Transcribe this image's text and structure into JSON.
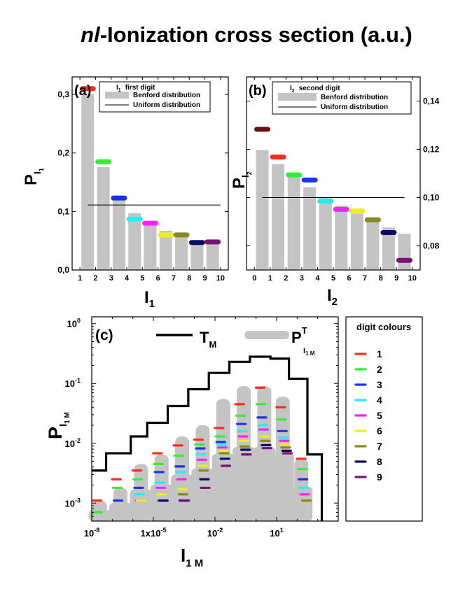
{
  "title_italic": "nl",
  "title_rest": "-Ionization cross section (a.u.)",
  "colors": {
    "benford": "#c4c4c4",
    "uniform": "#000000",
    "digits": [
      "#ff2a1a",
      "#33ee33",
      "#1a33ee",
      "#22eeee",
      "#ff22ff",
      "#eeee22",
      "#888822",
      "#0b0b66",
      "#771177"
    ],
    "d0": "#661111"
  },
  "chart_data": [
    {
      "type": "bar",
      "panel_label": "(a)",
      "categories": [
        "1",
        "2",
        "3",
        "4",
        "5",
        "6",
        "7",
        "8",
        "9"
      ],
      "benford": [
        0.301,
        0.176,
        0.125,
        0.097,
        0.079,
        0.067,
        0.058,
        0.051,
        0.046
      ],
      "observed": [
        0.31,
        0.185,
        0.123,
        0.087,
        0.08,
        0.06,
        0.06,
        0.047,
        0.048
      ],
      "uniform": 0.111,
      "xlim": [
        1,
        10
      ],
      "ylim": [
        0.0,
        0.33
      ],
      "x_ticks": [
        "1",
        "2",
        "3",
        "4",
        "5",
        "6",
        "7",
        "8",
        "9",
        "10"
      ],
      "y_ticks": [
        "0,0",
        "0,1",
        "0,2",
        "0,3"
      ],
      "y_tick_values": [
        0.0,
        0.1,
        0.2,
        0.3
      ],
      "legend": {
        "digit_symbol": "I",
        "digit_sub": "1",
        "digit_label": "first digit",
        "benford": "Benford distribution",
        "uniform": "Uniform distribution"
      },
      "xlabel_main": "I",
      "xlabel_sub": "1",
      "ylabel_main": "P",
      "ylabel_sub_main": "I",
      "ylabel_sub_sub": "1"
    },
    {
      "type": "bar",
      "panel_label": "(b)",
      "categories": [
        "0",
        "1",
        "2",
        "3",
        "4",
        "5",
        "6",
        "7",
        "8",
        "9"
      ],
      "benford": [
        0.1197,
        0.1139,
        0.1088,
        0.1043,
        0.1003,
        0.0967,
        0.0934,
        0.0904,
        0.0876,
        0.085
      ],
      "observed": [
        0.1283,
        0.1168,
        0.1094,
        0.1073,
        0.0985,
        0.0951,
        0.0945,
        0.0908,
        0.0855,
        0.074
      ],
      "uniform": 0.1,
      "xlim": [
        0,
        10
      ],
      "ylim": [
        0.07,
        0.15
      ],
      "x_ticks": [
        "0",
        "1",
        "2",
        "3",
        "4",
        "5",
        "6",
        "7",
        "8",
        "9",
        "10"
      ],
      "y_ticks": [
        "0,08",
        "0,10",
        "0,12",
        "0,14"
      ],
      "y_tick_values": [
        0.08,
        0.1,
        0.12,
        0.14
      ],
      "legend": {
        "digit_symbol": "I",
        "digit_sub": "2",
        "digit_label": "second digit",
        "benford": "Benford distribution",
        "uniform": "Uniform distribution"
      },
      "xlabel_main": "I",
      "xlabel_sub": "2",
      "ylabel_main": "P",
      "ylabel_sub_main": "I",
      "ylabel_sub_sub": "2"
    },
    {
      "type": "line",
      "panel_label": "(c)",
      "xscale": "log",
      "yscale": "log",
      "xlim": [
        1e-08,
        10000.0
      ],
      "ylim": [
        0.0005,
        1.3
      ],
      "x_ticks": [
        {
          "value": 1e-08,
          "base": "10",
          "exp": "-8"
        },
        {
          "value": 1e-05,
          "base": "1x10",
          "exp": "-5"
        },
        {
          "value": 0.01,
          "base": "10",
          "exp": "-2"
        },
        {
          "value": 10,
          "base": "10",
          "exp": "1"
        }
      ],
      "y_ticks": [
        {
          "value": 0.001,
          "base": "10",
          "exp": "-3"
        },
        {
          "value": 0.01,
          "base": "10",
          "exp": "-2"
        },
        {
          "value": 0.1,
          "base": "10",
          "exp": "-1"
        },
        {
          "value": 1,
          "base": "10",
          "exp": "0"
        }
      ],
      "T_M": {
        "x_edges_log": [
          -8,
          -7.3,
          -6.1,
          -5.3,
          -4.3,
          -3.3,
          -2.3,
          -1.3,
          -0.3,
          0.7,
          1.6,
          2.5,
          3.2
        ],
        "levels": [
          0.0035,
          0.0068,
          0.013,
          0.022,
          0.042,
          0.08,
          0.15,
          0.23,
          0.28,
          0.26,
          0.12,
          0.0065
        ],
        "drop_to": 0.0005
      },
      "P_T": {
        "x_log": [
          -7.6,
          -6.6,
          -5.6,
          -4.6,
          -3.6,
          -2.6,
          -1.6,
          -0.6,
          0.4,
          1.3,
          2.2
        ],
        "peaks": [
          0.0011,
          0.0018,
          0.0045,
          0.0065,
          0.013,
          0.02,
          0.055,
          0.09,
          0.09,
          0.06,
          0.0055
        ]
      },
      "digit_marks": [
        {
          "log_x": -7.75,
          "values": [
            0.0011,
            0.0007
          ]
        },
        {
          "log_x": -6.8,
          "values": [
            0.0025,
            0.0018,
            0.0011
          ]
        },
        {
          "log_x": -5.8,
          "values": [
            0.0035,
            0.0025,
            0.0018,
            0.0014,
            0.0011,
            0.0011
          ]
        },
        {
          "log_x": -4.8,
          "values": [
            0.0068,
            0.0045,
            0.0033,
            0.0022,
            0.0018,
            0.0014,
            0.0011,
            0.0011
          ]
        },
        {
          "log_x": -3.8,
          "values": [
            0.0092,
            0.0062,
            0.0041,
            0.0033,
            0.0025,
            0.0017,
            0.0014,
            0.0011,
            0.0011
          ]
        },
        {
          "log_x": -2.8,
          "values": [
            0.0115,
            0.0095,
            0.0082,
            0.0065,
            0.0053,
            0.0042,
            0.0035,
            0.0025,
            0.0018
          ]
        },
        {
          "log_x": -1.8,
          "values": [
            0.018,
            0.013,
            0.0105,
            0.0095,
            0.0085,
            0.0075,
            0.0068,
            0.0055,
            0.0042
          ]
        },
        {
          "log_x": -0.8,
          "values": [
            0.045,
            0.029,
            0.021,
            0.016,
            0.013,
            0.011,
            0.0088,
            0.0078,
            0.0065
          ]
        },
        {
          "log_x": 0.2,
          "values": [
            0.085,
            0.045,
            0.027,
            0.02,
            0.017,
            0.013,
            0.011,
            0.0093,
            0.0083
          ]
        },
        {
          "log_x": 1.2,
          "values": [
            0.04,
            0.025,
            0.016,
            0.0125,
            0.011,
            0.0095,
            0.0085,
            0.0075,
            0.0068
          ]
        },
        {
          "log_x": 2.2,
          "values": [
            0.0055,
            0.0037,
            0.0025,
            0.0018,
            0.0014,
            0.0011,
            0.0011
          ]
        }
      ],
      "legend": {
        "T_main": "T",
        "T_sub": "M",
        "P_main": "P",
        "P_sup": "T",
        "P_sub": "I",
        "P_sub_sub": "1 M"
      },
      "xlabel_main": "I",
      "xlabel_sub": "1 M",
      "ylabel_main": "P",
      "ylabel_sub": "I",
      "ylabel_sub_sub": "1 M"
    }
  ],
  "digit_panel": {
    "title": "digit colours",
    "labels": [
      "1",
      "2",
      "3",
      "4",
      "5",
      "6",
      "7",
      "8",
      "9"
    ]
  }
}
